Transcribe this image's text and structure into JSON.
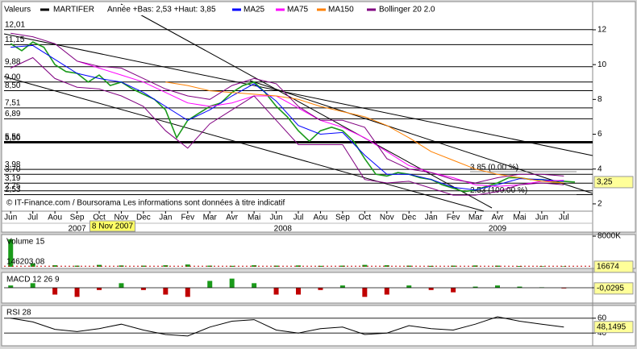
{
  "chart_data": [
    {
      "type": "line",
      "legend_label": "Valeurs",
      "subtitle": "Année +Bas: 2,53 +Haut: 3,85",
      "source": "© IT-Finance.com / Boursorama Les informations sont données à titre indicatif",
      "xlim": [
        -0.3,
        26.3
      ],
      "xticks": [
        {
          "value": 0,
          "label": "Jun"
        },
        {
          "value": 1,
          "label": "Jul"
        },
        {
          "value": 2,
          "label": "Aou"
        },
        {
          "value": 3,
          "label": "Sep"
        },
        {
          "value": 4,
          "label": "Oct"
        },
        {
          "value": 5,
          "label": "Nov"
        },
        {
          "value": 6,
          "label": "Dec"
        },
        {
          "value": 7,
          "label": "Jan"
        },
        {
          "value": 8,
          "label": "Fev"
        },
        {
          "value": 9,
          "label": "Mar"
        },
        {
          "value": 10,
          "label": "Avr"
        },
        {
          "value": 11,
          "label": "Mai"
        },
        {
          "value": 12,
          "label": "Jun"
        },
        {
          "value": 13,
          "label": "Jul"
        },
        {
          "value": 14,
          "label": "Aou"
        },
        {
          "value": 15,
          "label": "Sep"
        },
        {
          "value": 16,
          "label": "Oct"
        },
        {
          "value": 17,
          "label": "Nov"
        },
        {
          "value": 18,
          "label": "Dec"
        },
        {
          "value": 19,
          "label": "Jan"
        },
        {
          "value": 20,
          "label": "Fev"
        },
        {
          "value": 21,
          "label": "Mar"
        },
        {
          "value": 22,
          "label": "Avr"
        },
        {
          "value": 23,
          "label": "Mai"
        },
        {
          "value": 24,
          "label": "Jun"
        },
        {
          "value": 25,
          "label": "Jul"
        }
      ],
      "years": [
        {
          "value": 3,
          "label": "2007"
        },
        {
          "value": 12.3,
          "label": "2008"
        },
        {
          "value": 22,
          "label": "2009"
        }
      ],
      "cursor": {
        "value": 4.6,
        "label": "8 Nov 2007"
      },
      "ylim": [
        1.58,
        13.48
      ],
      "yticks": [
        2,
        4,
        6,
        8,
        10,
        12
      ],
      "levels": [
        {
          "value": 12.01,
          "label": "12,01"
        },
        {
          "value": 11.15,
          "label": "11,15"
        },
        {
          "value": 9.88,
          "label": "9,88"
        },
        {
          "value": 9.0,
          "label": "9,00"
        },
        {
          "value": 8.5,
          "label": "8,50"
        },
        {
          "value": 7.51,
          "label": "7,51"
        },
        {
          "value": 6.89,
          "label": "6,89"
        },
        {
          "value": 5.56,
          "label": "5,56"
        },
        {
          "value": 5.5,
          "label": "5,50"
        },
        {
          "value": 3.98,
          "label": "3,98"
        },
        {
          "value": 3.7,
          "label": "3,70"
        },
        {
          "value": 3.19,
          "label": "3,19"
        },
        {
          "value": 2.75,
          "label": "2,75"
        },
        {
          "value": 2.53,
          "label": "2,53"
        }
      ],
      "fib_labels": [
        {
          "value": 3.85,
          "label": "3.85 (0.00 %)"
        },
        {
          "value": 2.53,
          "label": "2.53 (100.00 %)"
        }
      ],
      "series": [
        {
          "name": "MARTIFER",
          "color": "#000000",
          "line_color": "#1a9a1a",
          "x": [
            0,
            0.5,
            1,
            1.5,
            2,
            2.5,
            3,
            3.5,
            4,
            4.5,
            5,
            5.5,
            6,
            6.5,
            7,
            7.5,
            8,
            8.5,
            9,
            9.5,
            10,
            10.5,
            11,
            11.5,
            12,
            12.5,
            13,
            13.5,
            14,
            14.5,
            15,
            15.5,
            16,
            16.5,
            17,
            17.5,
            18,
            18.5,
            19,
            19.5,
            20,
            20.5,
            21,
            21.5,
            22,
            22.5,
            23,
            23.5,
            24,
            24.5,
            25,
            25.5
          ],
          "values": [
            11.2,
            10.8,
            11.3,
            11.0,
            10.0,
            9.6,
            9.5,
            9.0,
            9.4,
            8.8,
            9.0,
            8.6,
            8.3,
            8.0,
            7.4,
            5.8,
            6.8,
            7.2,
            7.6,
            7.8,
            8.4,
            8.8,
            9.0,
            8.4,
            7.6,
            7.0,
            6.2,
            5.6,
            6.2,
            6.4,
            6.2,
            5.6,
            4.6,
            3.7,
            3.6,
            3.8,
            3.7,
            3.5,
            3.4,
            3.1,
            2.9,
            2.7,
            2.8,
            3.0,
            3.2,
            3.5,
            3.5,
            3.4,
            3.4,
            3.3,
            3.3,
            3.25
          ]
        },
        {
          "name": "MA25",
          "color": "#0000ff",
          "x": [
            0,
            1,
            2,
            3,
            4,
            5,
            6,
            7,
            8,
            9,
            10,
            11,
            12,
            13,
            14,
            15,
            16,
            17,
            18,
            19,
            20,
            21,
            22,
            23,
            24,
            25
          ],
          "values": [
            11.0,
            11.1,
            10.3,
            9.5,
            9.2,
            9.0,
            8.4,
            7.6,
            6.8,
            7.4,
            8.2,
            8.9,
            7.9,
            6.5,
            6.0,
            6.1,
            4.8,
            3.7,
            3.7,
            3.4,
            2.95,
            2.8,
            3.1,
            3.45,
            3.4,
            3.3
          ]
        },
        {
          "name": "MA75",
          "color": "#ff00ff",
          "x": [
            0,
            1,
            2,
            3,
            4,
            5,
            6,
            7,
            8,
            9,
            10,
            11,
            12,
            13,
            14,
            15,
            16,
            17,
            18,
            19,
            20,
            21,
            22,
            23,
            24,
            25
          ],
          "values": [
            null,
            null,
            null,
            10.2,
            9.8,
            9.4,
            9.0,
            8.4,
            7.8,
            7.6,
            7.8,
            8.2,
            8.2,
            7.5,
            6.8,
            6.4,
            5.8,
            5.0,
            4.2,
            3.8,
            3.5,
            3.1,
            3.0,
            3.1,
            3.3,
            3.35
          ]
        },
        {
          "name": "MA150",
          "color": "#ff8000",
          "x": [
            0,
            1,
            2,
            3,
            4,
            5,
            6,
            7,
            8,
            9,
            10,
            11,
            12,
            13,
            14,
            15,
            16,
            17,
            18,
            19,
            20,
            21,
            22,
            23,
            24,
            25
          ],
          "values": [
            null,
            null,
            null,
            null,
            null,
            null,
            null,
            9.0,
            8.8,
            8.5,
            8.4,
            8.3,
            8.2,
            8.0,
            7.6,
            7.3,
            7.0,
            6.5,
            5.8,
            5.0,
            4.5,
            4.0,
            3.7,
            3.5,
            3.3,
            3.2
          ]
        },
        {
          "name": "Bollinger 20 2.0",
          "color": "#800080",
          "x": [
            0,
            1,
            2,
            3,
            4,
            5,
            6,
            7,
            8,
            9,
            10,
            11,
            12,
            13,
            14,
            15,
            16,
            17,
            18,
            19,
            20,
            21,
            22,
            23,
            24,
            25
          ],
          "values": [
            11.8,
            11.6,
            11.2,
            10.2,
            9.9,
            9.8,
            9.2,
            8.6,
            8.2,
            8.0,
            8.8,
            9.2,
            8.9,
            7.6,
            6.8,
            6.8,
            6.4,
            4.6,
            4.0,
            3.8,
            3.4,
            3.2,
            3.5,
            3.7,
            3.7,
            3.6
          ],
          "lower": [
            9.8,
            10.4,
            9.2,
            8.7,
            8.6,
            8.2,
            7.6,
            6.2,
            5.2,
            6.6,
            7.4,
            8.2,
            6.8,
            5.4,
            5.4,
            5.4,
            3.4,
            3.2,
            3.3,
            2.9,
            2.5,
            2.5,
            2.7,
            3.1,
            3.2,
            3.1
          ]
        }
      ],
      "last": {
        "value": 3.25,
        "label": "3,25"
      }
    },
    {
      "type": "bar",
      "title": "Volume 15",
      "color": "#1a9a1a",
      "xlim": [
        -0.3,
        26.3
      ],
      "x": [
        0,
        1,
        2,
        3,
        4,
        5,
        6,
        7,
        8,
        9,
        10,
        11,
        12,
        13,
        14,
        15,
        16,
        17,
        18,
        19,
        20,
        21,
        22,
        23,
        24,
        25
      ],
      "values": [
        7200000,
        900000,
        400000,
        300000,
        500000,
        350000,
        300000,
        400000,
        600000,
        300000,
        250000,
        400000,
        300000,
        350000,
        250000,
        300000,
        500000,
        400000,
        300000,
        250000,
        300000,
        350000,
        300000,
        200000,
        150000,
        120000
      ],
      "ylim": [
        0,
        8000000
      ],
      "yticks": [
        {
          "value": 8000000,
          "label": "8000K"
        }
      ],
      "reference": {
        "value": 146203.08,
        "label": "146203,08"
      },
      "last": 16674
    },
    {
      "type": "bar",
      "title": "MACD 12 26 9",
      "color": "#1a9a1a",
      "negative_color": "#c00000",
      "xlim": [
        -0.3,
        26.3
      ],
      "x": [
        0,
        1,
        2,
        3,
        4,
        5,
        6,
        7,
        8,
        9,
        10,
        11,
        12,
        13,
        14,
        15,
        16,
        17,
        18,
        19,
        20,
        21,
        22,
        23,
        24,
        25
      ],
      "values": [
        0.1,
        0.2,
        -0.3,
        -0.4,
        -0.1,
        0.2,
        -0.1,
        -0.3,
        -0.4,
        0.3,
        0.4,
        0.2,
        -0.3,
        -0.3,
        -0.1,
        0.1,
        -0.4,
        -0.3,
        0.1,
        -0.1,
        -0.2,
        0.05,
        0.1,
        0.05,
        0.02,
        -0.03
      ],
      "ylim": [
        -0.6,
        0.6
      ],
      "yticks": [
        0
      ],
      "grid": true,
      "last": {
        "value": -0.0295,
        "label": "-0,0295"
      }
    },
    {
      "type": "line",
      "title": "RSI 28",
      "xlim": [
        -0.3,
        26.3
      ],
      "series": [
        {
          "color": "#000000",
          "x": [
            0,
            1,
            2,
            3,
            4,
            5,
            6,
            7,
            8,
            9,
            10,
            11,
            12,
            13,
            14,
            15,
            16,
            17,
            18,
            19,
            20,
            21,
            22,
            23,
            24,
            25
          ],
          "values": [
            60,
            55,
            45,
            42,
            46,
            52,
            44,
            38,
            36,
            48,
            56,
            58,
            44,
            40,
            46,
            48,
            38,
            40,
            50,
            46,
            44,
            52,
            62,
            56,
            52,
            48
          ]
        }
      ],
      "ylim": [
        25,
        75
      ],
      "yticks": [
        40,
        60
      ],
      "grid": true,
      "last": {
        "value": 48.1495,
        "label": "48,1495"
      }
    }
  ]
}
